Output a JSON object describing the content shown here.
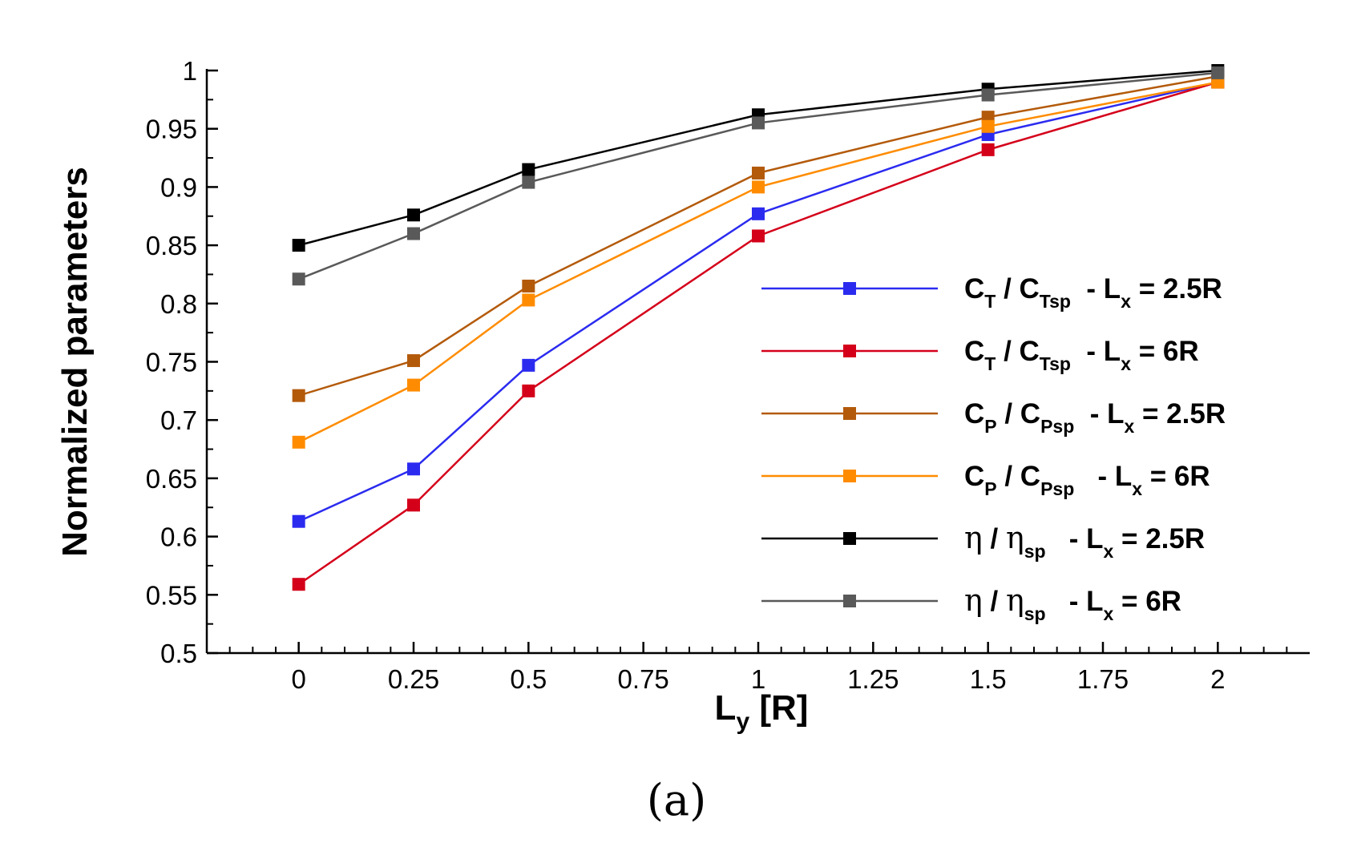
{
  "chart_data": {
    "type": "line",
    "xlabel": "L",
    "xlabel_sub": "y",
    "xlabel_suffix": " [R]",
    "ylabel": "Normalized parameters",
    "xlim": [
      -0.2,
      2.2
    ],
    "ylim": [
      0.5,
      1.0
    ],
    "xticks": [
      "0",
      "0.25",
      "0.5",
      "0.75",
      "1",
      "1.25",
      "1.5",
      "1.75",
      "2"
    ],
    "xtick_values": [
      0,
      0.25,
      0.5,
      0.75,
      1,
      1.25,
      1.5,
      1.75,
      2
    ],
    "yticks": [
      "0.5",
      "0.55",
      "0.6",
      "0.65",
      "0.7",
      "0.75",
      "0.8",
      "0.85",
      "0.9",
      "0.95",
      "1"
    ],
    "ytick_values": [
      0.5,
      0.55,
      0.6,
      0.65,
      0.7,
      0.75,
      0.8,
      0.85,
      0.9,
      0.95,
      1.0
    ],
    "x": [
      0,
      0.25,
      0.5,
      1,
      1.5,
      2
    ],
    "legend_position": "right",
    "series": [
      {
        "name": "CT / CTsp - Lx = 2.5R",
        "color": "#2b2bf0",
        "values": [
          0.613,
          0.658,
          0.747,
          0.877,
          0.945,
          0.99
        ],
        "legend": [
          {
            "t": "C"
          },
          {
            "t": "T",
            "sub": true
          },
          {
            "t": " / C"
          },
          {
            "t": "Tsp",
            "sub": true
          },
          {
            "t": "  - L"
          },
          {
            "t": "x",
            "sub": true
          },
          {
            "t": " = 2.5R"
          }
        ]
      },
      {
        "name": "CT / CTsp - Lx = 6R",
        "color": "#d4001a",
        "values": [
          0.559,
          0.627,
          0.725,
          0.858,
          0.932,
          0.99
        ],
        "legend": [
          {
            "t": "C"
          },
          {
            "t": "T",
            "sub": true
          },
          {
            "t": " / C"
          },
          {
            "t": "Tsp",
            "sub": true
          },
          {
            "t": "  - L"
          },
          {
            "t": "x",
            "sub": true
          },
          {
            "t": " = 6R"
          }
        ]
      },
      {
        "name": "CP / CPsp - Lx = 2.5R",
        "color": "#b35a0a",
        "values": [
          0.721,
          0.751,
          0.815,
          0.912,
          0.96,
          0.995
        ],
        "legend": [
          {
            "t": "C"
          },
          {
            "t": "P",
            "sub": true
          },
          {
            "t": " / C"
          },
          {
            "t": "Psp",
            "sub": true
          },
          {
            "t": "  - L"
          },
          {
            "t": "x",
            "sub": true
          },
          {
            "t": " = 2.5R"
          }
        ]
      },
      {
        "name": "CP / CPsp - Lx = 6R",
        "color": "#ff8c00",
        "values": [
          0.681,
          0.73,
          0.803,
          0.9,
          0.952,
          0.99
        ],
        "legend": [
          {
            "t": "C"
          },
          {
            "t": "P",
            "sub": true
          },
          {
            "t": " / C"
          },
          {
            "t": "Psp",
            "sub": true
          },
          {
            "t": "   - L"
          },
          {
            "t": "x",
            "sub": true
          },
          {
            "t": " = 6R"
          }
        ]
      },
      {
        "name": "η / ηsp - Lx = 2.5R",
        "color": "#000000",
        "values": [
          0.85,
          0.876,
          0.915,
          0.962,
          0.984,
          1.0
        ],
        "legend": [
          {
            "t": "η",
            "eta": true
          },
          {
            "t": " / "
          },
          {
            "t": "η",
            "eta": true
          },
          {
            "t": "sp",
            "sub": true
          },
          {
            "t": "   - L"
          },
          {
            "t": "x",
            "sub": true
          },
          {
            "t": " = 2.5R"
          }
        ]
      },
      {
        "name": "η / ηsp - Lx = 6R",
        "color": "#595959",
        "values": [
          0.821,
          0.86,
          0.904,
          0.955,
          0.979,
          0.998
        ],
        "legend": [
          {
            "t": "η",
            "eta": true
          },
          {
            "t": " / "
          },
          {
            "t": "η",
            "eta": true
          },
          {
            "t": "sp",
            "sub": true
          },
          {
            "t": "   - L"
          },
          {
            "t": "x",
            "sub": true
          },
          {
            "t": " = 6R"
          }
        ]
      }
    ]
  },
  "caption": "(a)"
}
